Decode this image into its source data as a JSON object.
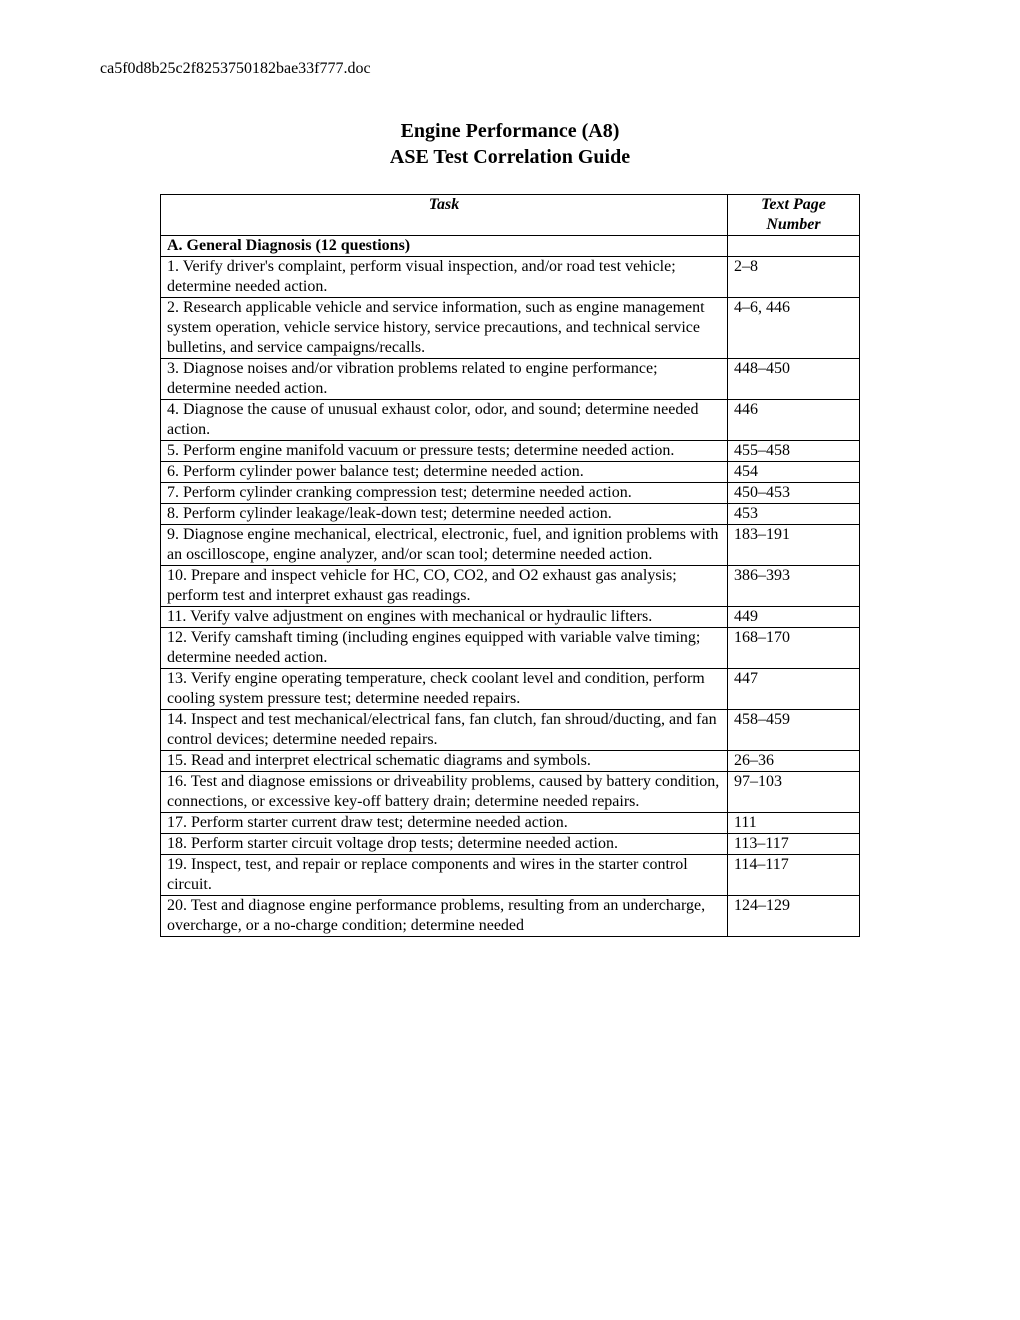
{
  "docId": "ca5f0d8b25c2f8253750182bae33f777.doc",
  "title1": "Engine Performance (A8)",
  "title2": "ASE Test Correlation Guide",
  "headers": {
    "task": "Task",
    "page": "Text Page Number"
  },
  "section": "A. General Diagnosis (12 questions)",
  "rows": [
    {
      "task": "1. Verify driver's complaint, perform visual inspection, and/or road test vehicle; determine needed action.",
      "page": "2–8"
    },
    {
      "task": "2. Research applicable vehicle and service information, such as engine management system operation, vehicle service history, service precautions, and technical service bulletins, and service campaigns/recalls.",
      "page": "4–6, 446"
    },
    {
      "task": "3. Diagnose noises and/or vibration problems related to engine performance; determine needed action.",
      "page": "448–450"
    },
    {
      "task": "4. Diagnose the cause of unusual exhaust color, odor, and sound; determine needed action.",
      "page": "446"
    },
    {
      "task": "5. Perform engine manifold vacuum or pressure tests; determine needed action.",
      "page": "455–458"
    },
    {
      "task": "6. Perform cylinder power balance test; determine needed action.",
      "page": "454"
    },
    {
      "task": "7. Perform cylinder cranking compression test; determine needed action.",
      "page": "450–453"
    },
    {
      "task": "8. Perform cylinder leakage/leak-down test; determine needed action.",
      "page": "453"
    },
    {
      "task": "9. Diagnose engine mechanical, electrical, electronic, fuel, and ignition problems with an oscilloscope, engine analyzer, and/or scan tool; determine needed action.",
      "page": "183–191"
    },
    {
      "task": "10. Prepare and inspect vehicle for HC, CO, CO2, and O2 exhaust gas analysis; perform test and interpret exhaust gas readings.",
      "page": "386–393"
    },
    {
      "task": "11. Verify valve adjustment on engines with mechanical or hydraulic lifters.",
      "page": "449"
    },
    {
      "task": "12. Verify camshaft timing (including engines equipped with variable valve timing; determine needed action.",
      "page": "168–170"
    },
    {
      "task": "13. Verify engine operating temperature, check coolant level and condition, perform cooling system pressure test; determine needed repairs.",
      "page": "447"
    },
    {
      "task": "14. Inspect and test mechanical/electrical fans, fan clutch, fan shroud/ducting, and fan control devices; determine needed repairs.",
      "page": "458–459"
    },
    {
      "task": "15. Read and interpret electrical schematic diagrams and symbols.",
      "page": "26–36"
    },
    {
      "task": "16. Test and diagnose emissions or driveability problems, caused by battery condition, connections, or excessive key-off battery drain; determine needed repairs.",
      "page": "97–103"
    },
    {
      "task": "17. Perform starter current draw test; determine needed action.",
      "page": "111"
    },
    {
      "task": "18. Perform starter circuit voltage drop tests; determine needed action.",
      "page": "113–117"
    },
    {
      "task": "19. Inspect, test, and repair or replace components and wires in the starter control circuit.",
      "page": "114–117"
    },
    {
      "task": "20. Test and diagnose engine performance problems, resulting from an undercharge, overcharge, or a no-charge condition; determine needed",
      "page": "124–129"
    }
  ]
}
